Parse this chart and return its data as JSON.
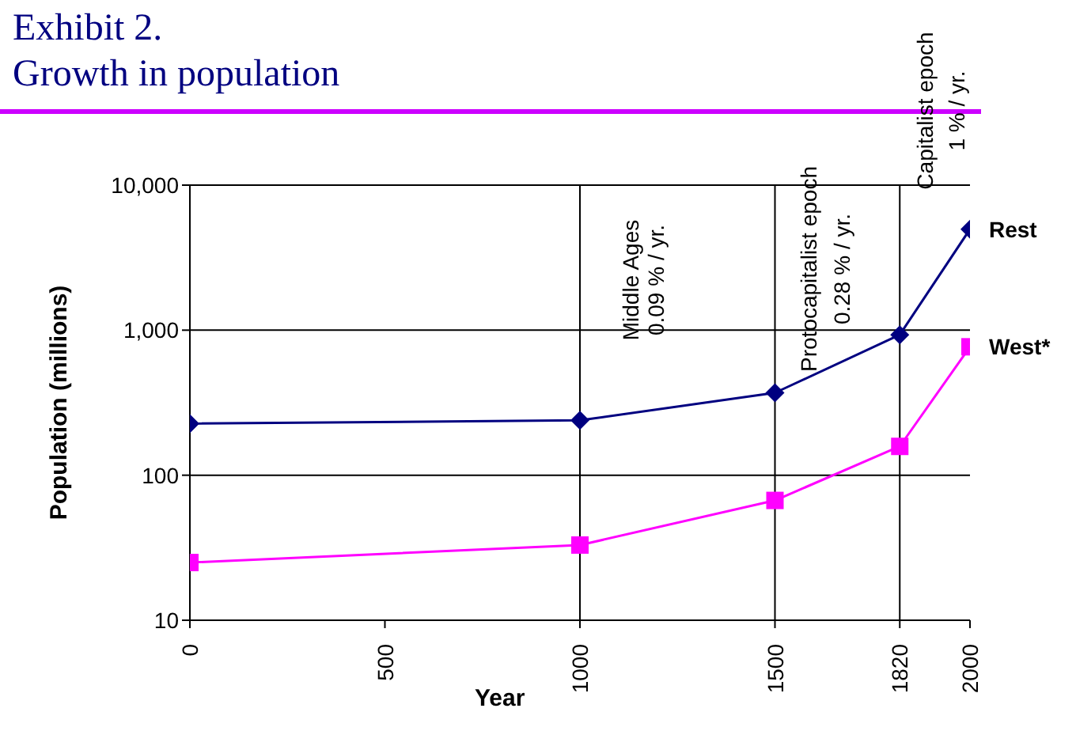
{
  "chart_data": {
    "type": "line",
    "title": "Exhibit 2.\nGrowth in population",
    "xlabel": "Year",
    "ylabel": "Population (millions)",
    "x": [
      0,
      1000,
      1500,
      1820,
      2000
    ],
    "series": [
      {
        "name": "Rest",
        "color": "#000080",
        "marker": "diamond",
        "values": [
          227,
          239,
          370,
          929,
          4970
        ]
      },
      {
        "name": "West*",
        "color": "#ff00ff",
        "marker": "square",
        "values": [
          25,
          33,
          67,
          158,
          768
        ]
      }
    ],
    "xlim": [
      0,
      2000
    ],
    "xticks": [
      0,
      500,
      1000,
      1500,
      1820,
      2000
    ],
    "ylim": [
      10,
      10000
    ],
    "yticks": [
      10,
      100,
      {
        "value": 1000,
        "label": "1,000"
      },
      {
        "value": 10000,
        "label": "10,000"
      }
    ],
    "log": "y",
    "grid": "y",
    "line_style": "solid",
    "ref_lines": [
      {
        "axis": "x",
        "value": 1000,
        "label": "Middle Ages\n0.09 % / yr."
      },
      {
        "axis": "x",
        "value": 1500,
        "label": "Protocapitalist epoch\n0.28 % / yr."
      },
      {
        "axis": "x",
        "value": 1820,
        "label": "Capitalist epoch\n1 % / yr."
      }
    ]
  }
}
